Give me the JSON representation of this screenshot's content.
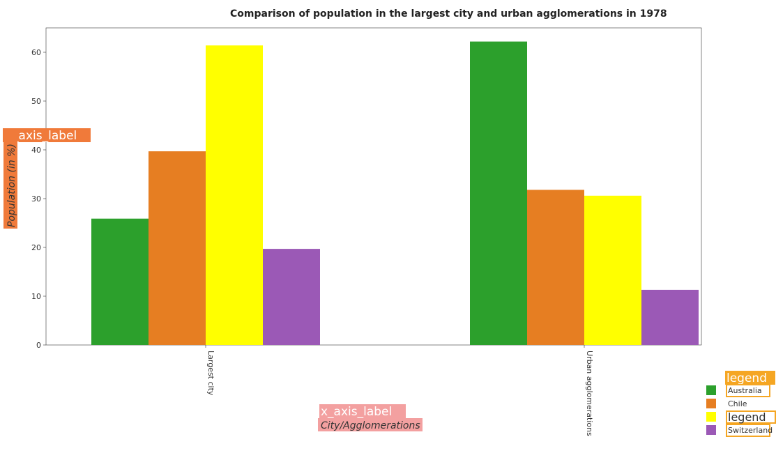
{
  "chart_data": {
    "type": "bar",
    "title": "Comparison of population in the largest city and urban agglomerations in 1978",
    "xlabel": "City/Agglomerations",
    "ylabel": "Population (in %)",
    "xlabel_tag": "x_axis_label",
    "ylabel_tag": "y_axis_label",
    "legend_tag": "legend",
    "categories": [
      "Largest city",
      "Urban agglomerations"
    ],
    "series": [
      {
        "name": "Australia",
        "color": "#2ca02c",
        "values": [
          25.9,
          62.2
        ]
      },
      {
        "name": "Chile",
        "color": "#e67e22",
        "values": [
          39.7,
          31.8
        ]
      },
      {
        "name": "legend",
        "color": "#ffff00",
        "values": [
          61.4,
          30.6
        ]
      },
      {
        "name": "Switzerland",
        "color": "#9b59b6",
        "values": [
          19.7,
          11.3
        ]
      }
    ],
    "ylim": [
      0,
      65
    ],
    "yticks": [
      0,
      10,
      20,
      30,
      40,
      50,
      60
    ],
    "grid": false,
    "legend_position": "bottom-right"
  }
}
